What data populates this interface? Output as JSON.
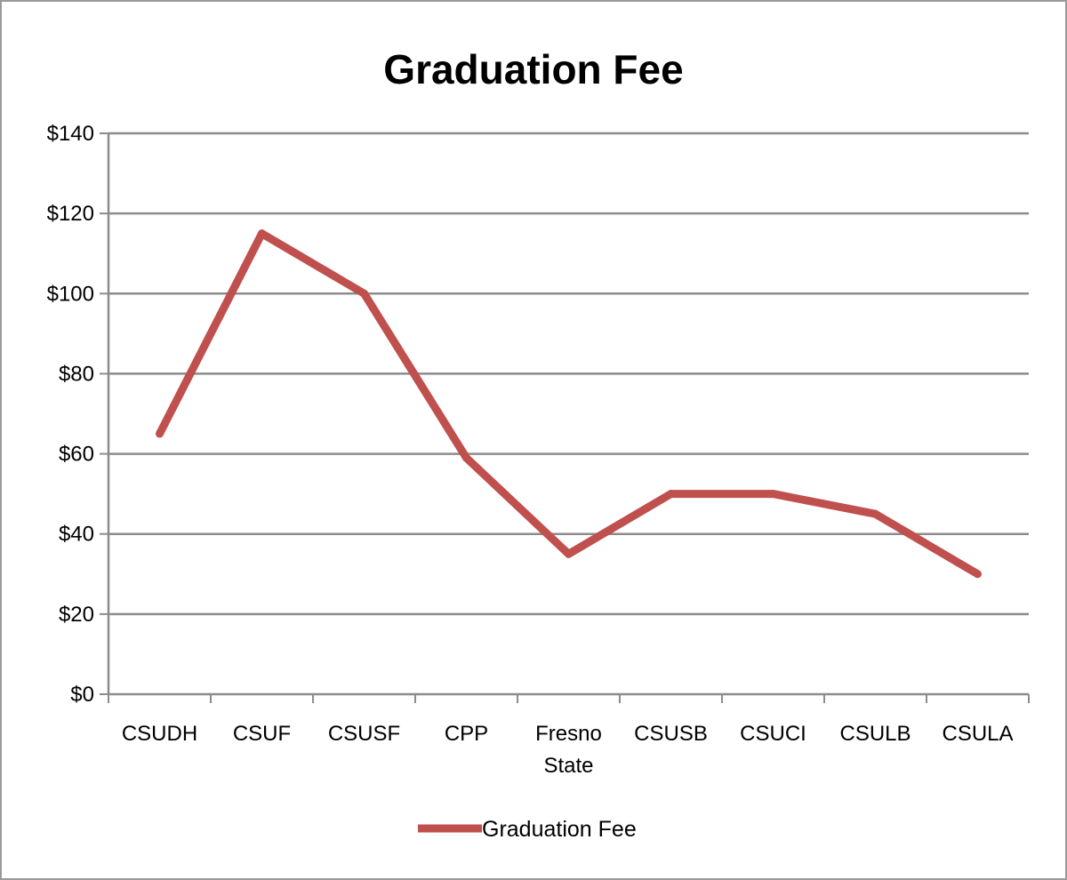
{
  "chart_data": {
    "type": "line",
    "title": "Graduation Fee",
    "xlabel": "",
    "ylabel": "",
    "categories": [
      "CSUDH",
      "CSUF",
      "CSUSF",
      "CPP",
      "Fresno State",
      "CSUSB",
      "CSUCI",
      "CSULB",
      "CSULA"
    ],
    "series": [
      {
        "name": "Graduation Fee",
        "color": "#c0504d",
        "values": [
          65,
          115,
          100,
          59,
          35,
          50,
          50,
          45,
          30
        ]
      }
    ],
    "ylim": [
      0,
      140
    ],
    "y_ticks": [
      0,
      20,
      40,
      60,
      80,
      100,
      120,
      140
    ],
    "y_tick_labels": [
      "$0",
      "$20",
      "$40",
      "$60",
      "$80",
      "$100",
      "$120",
      "$140"
    ],
    "grid": true,
    "legend_position": "bottom"
  }
}
